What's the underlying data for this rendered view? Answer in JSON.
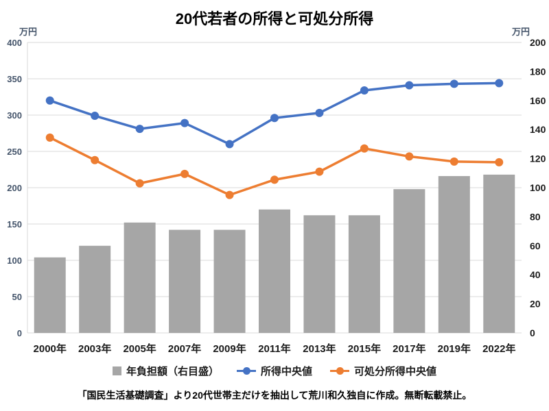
{
  "title": "20代若者の所得と可処分所得",
  "left_axis_unit": "万円",
  "right_axis_unit": "万円",
  "footer": "「国民生活基礎調査」より20代世帯主だけを抽出して荒川和久独自に作成。無断転載禁止。",
  "colors": {
    "grid": "#D9D9D9",
    "left_axis_text": "#44546A",
    "right_axis_text": "#1a1a1a",
    "x_axis_text": "#1a1a1a"
  },
  "chart_data": {
    "type": "combo",
    "categories": [
      "2000年",
      "2003年",
      "2005年",
      "2007年",
      "2009年",
      "2011年",
      "2013年",
      "2015年",
      "2017年",
      "2019年",
      "2022年"
    ],
    "series": [
      {
        "name": "年負担額（右目盛）",
        "type": "bar",
        "axis": "right",
        "color": "#A6A6A6",
        "values": [
          52,
          60,
          76,
          71,
          71,
          85,
          81,
          81,
          99,
          108,
          109
        ]
      },
      {
        "name": "所得中央値",
        "type": "line",
        "axis": "left",
        "color": "#4472C4",
        "values": [
          320,
          299,
          281,
          289,
          260,
          296,
          303,
          334,
          341,
          343,
          344
        ]
      },
      {
        "name": "可処分所得中央値",
        "type": "line",
        "axis": "left",
        "color": "#ED7D31",
        "values": [
          269,
          238,
          206,
          219,
          190,
          211,
          222,
          254,
          243,
          236,
          235
        ]
      }
    ],
    "left_axis": {
      "min": 0,
      "max": 400,
      "step": 50
    },
    "right_axis": {
      "min": 0,
      "max": 200,
      "step": 20
    },
    "grid": true,
    "legend_position": "bottom"
  }
}
